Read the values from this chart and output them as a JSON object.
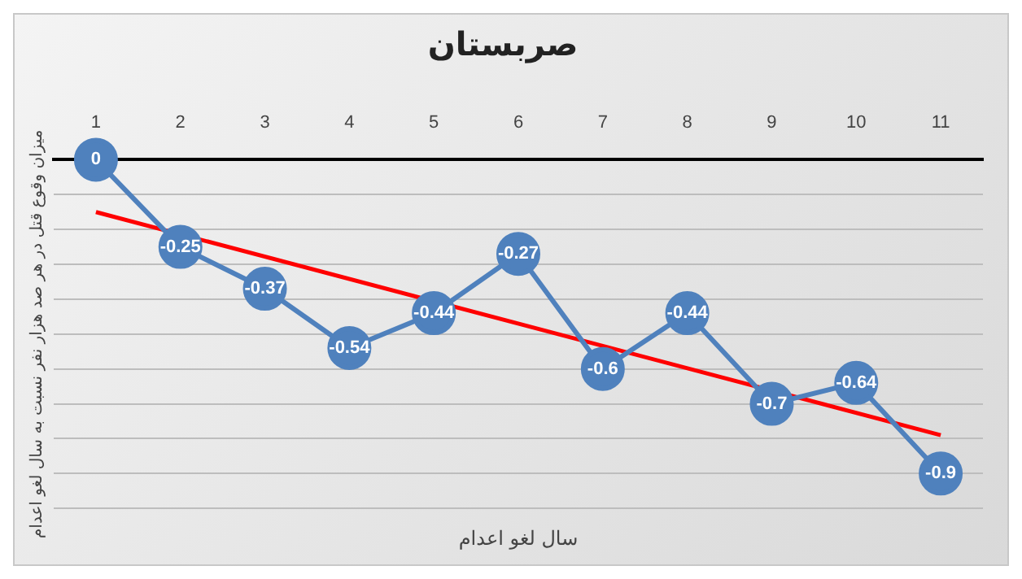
{
  "chart_data": {
    "type": "line",
    "title": "صربستان",
    "xlabel": "سال لغو اعدام",
    "ylabel": "میزان وقوع قتل در هر صد هزار نفر نسبت به سال لغو اعدام",
    "categories": [
      "1",
      "2",
      "3",
      "4",
      "5",
      "6",
      "7",
      "8",
      "9",
      "10",
      "11"
    ],
    "series": [
      {
        "color": "#4f81bd",
        "marker": "circle",
        "values": [
          0,
          -0.25,
          -0.37,
          -0.54,
          -0.44,
          -0.27,
          -0.6,
          -0.44,
          -0.7,
          -0.64,
          -0.9
        ],
        "value_labels": [
          "0",
          "-0.25",
          "-0.37",
          "-0.54",
          "-0.44",
          "-0.27",
          "-0.6",
          "-0.44",
          "-0.7",
          "-0.64",
          "-0.9"
        ]
      },
      {
        "type": "line",
        "color": "#ff0000",
        "marker": "none",
        "values": [
          -0.15,
          null,
          null,
          null,
          null,
          null,
          null,
          null,
          null,
          null,
          -0.79
        ]
      }
    ],
    "ylim": [
      -1,
      0
    ],
    "yticks": [
      {
        "value": -1,
        "label": null
      },
      {
        "value": -0.9,
        "label": null
      },
      {
        "value": -0.8,
        "label": null
      },
      {
        "value": -0.7,
        "label": null
      },
      {
        "value": -0.6,
        "label": null
      },
      {
        "value": -0.5,
        "label": null
      },
      {
        "value": -0.4,
        "label": null
      },
      {
        "value": -0.3,
        "label": null
      },
      {
        "value": -0.2,
        "label": null
      },
      {
        "value": -0.1,
        "label": null
      },
      {
        "value": 0,
        "label": null
      }
    ],
    "tick_labels": "x",
    "grid": "y",
    "legend": false
  }
}
